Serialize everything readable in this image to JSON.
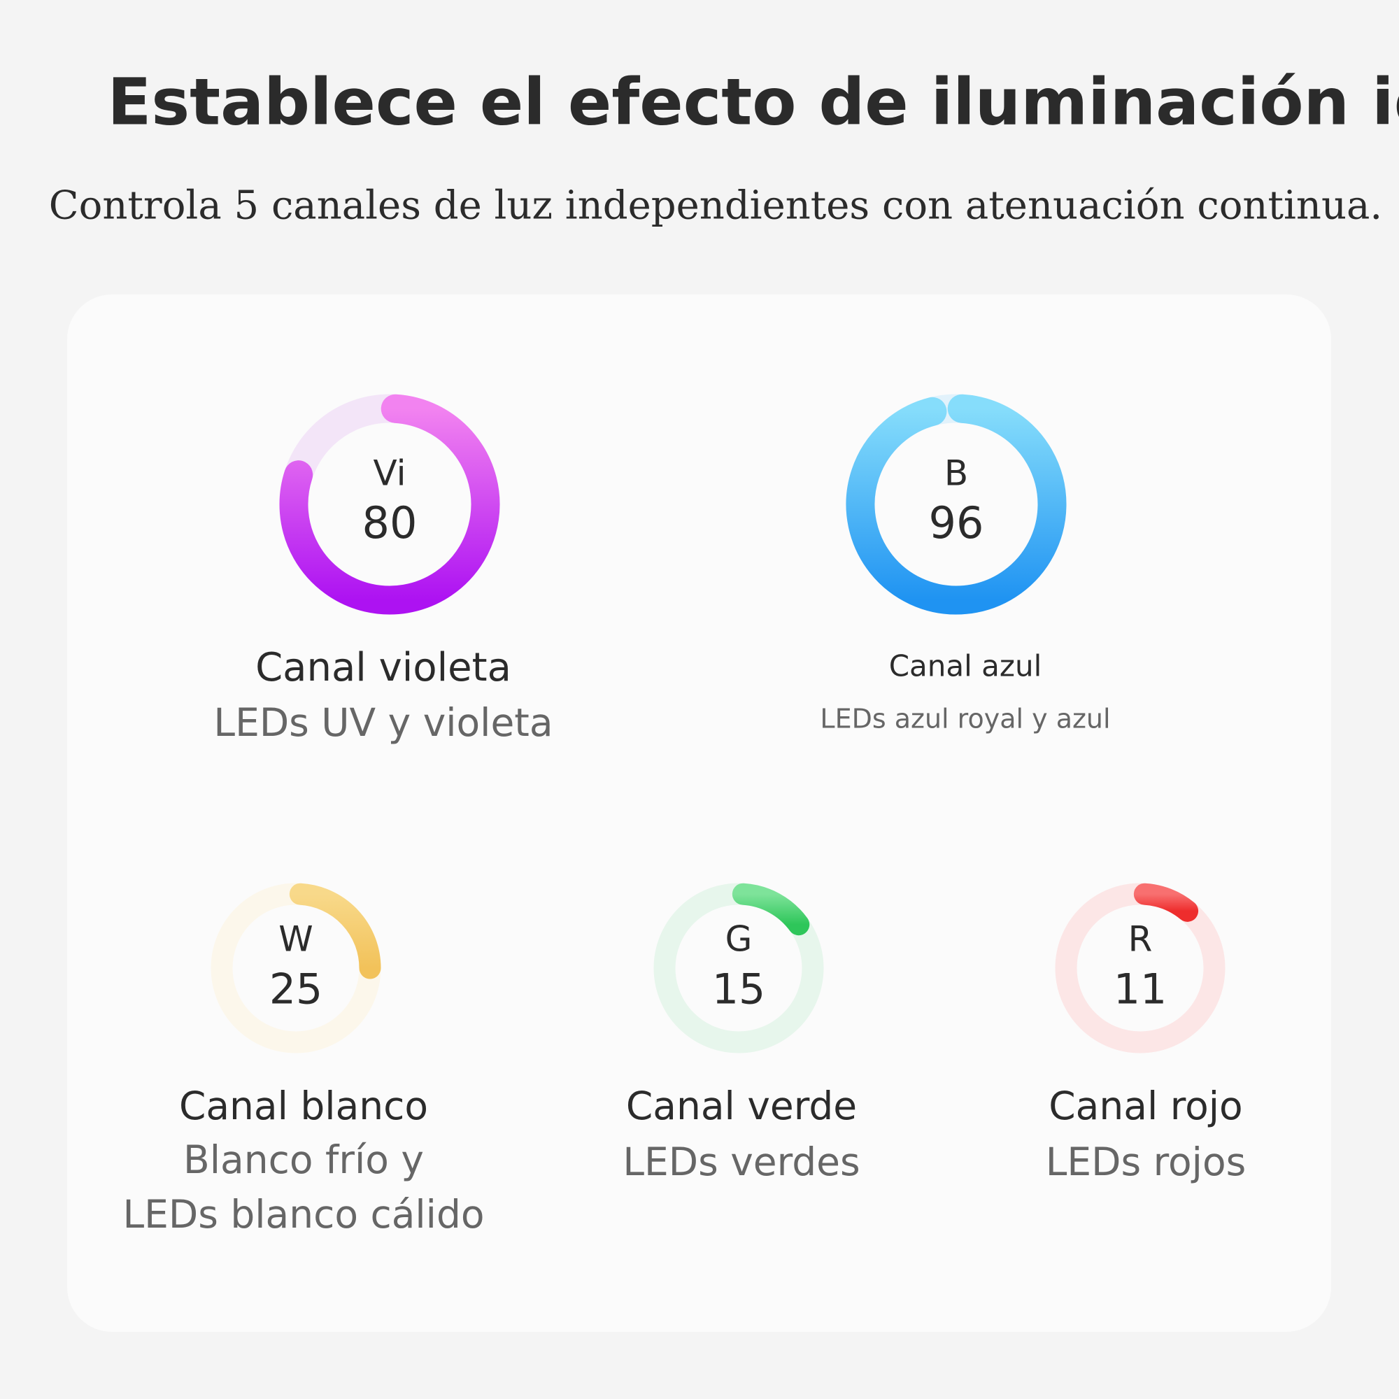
{
  "header": {
    "title": "Establece el efecto de iluminación ideal",
    "subtitle": "Controla 5 canales de luz independientes con atenuación continua."
  },
  "channels": [
    {
      "letter": "Vi",
      "value": 80,
      "name": "Canal violeta",
      "description": [
        "LEDs UV y violeta"
      ],
      "colors": [
        "#f283f0",
        "#ad12f2"
      ],
      "track": "#f3e5f8"
    },
    {
      "letter": "B",
      "value": 96,
      "name": "Canal azul",
      "description": [
        "LEDs azul royal y azul"
      ],
      "colors": [
        "#86ddfb",
        "#1f93f2"
      ],
      "track": "#e2f2fb"
    },
    {
      "letter": "W",
      "value": 25,
      "name": "Canal blanco",
      "description": [
        "Blanco frío y",
        "LEDs blanco cálido"
      ],
      "colors": [
        "#f8d98a",
        "#f2c25a"
      ],
      "track": "#fcf7eb"
    },
    {
      "letter": "G",
      "value": 15,
      "name": "Canal verde",
      "description": [
        "LEDs verdes"
      ],
      "colors": [
        "#7ee39a",
        "#2ec65a"
      ],
      "track": "#e7f6ec"
    },
    {
      "letter": "R",
      "value": 11,
      "name": "Canal rojo",
      "description": [
        "LEDs rojos"
      ],
      "colors": [
        "#f87070",
        "#ee2d2d"
      ],
      "track": "#fce6e6"
    }
  ]
}
